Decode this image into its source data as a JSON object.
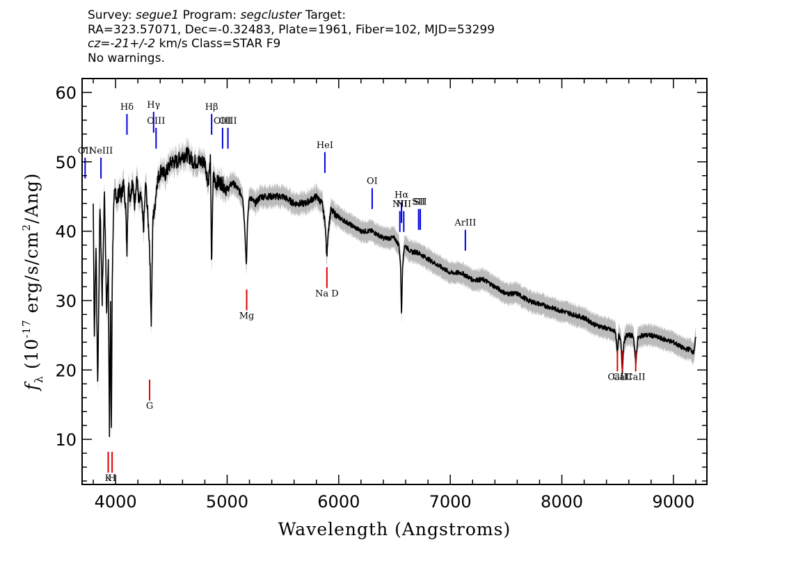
{
  "header": {
    "survey_label": "Survey:",
    "survey": "segue1",
    "program_label": "Program:",
    "program": "segcluster",
    "target_label": "Target:",
    "line2": "RA=323.57071, Dec=-0.32483, Plate=1961, Fiber=102, MJD=53299",
    "cz_label": "cz=",
    "cz_value": "-21+/-2",
    "cz_units": "km/s Class=STAR F9",
    "warnings": "No warnings."
  },
  "colors": {
    "flux": "#000000",
    "error_band": "#bbbbbb",
    "emission_line": "#0000dd",
    "absorption_line": "#dd0000"
  },
  "chart_data": {
    "type": "line",
    "xlabel": "Wavelength (Angstroms)",
    "ylabel_parts": [
      "f",
      "λ",
      " (10",
      "-17",
      " erg/s/cm",
      "2",
      "/Ang)"
    ],
    "xlim": [
      3700,
      9300
    ],
    "ylim": [
      3.5,
      62
    ],
    "xticks": [
      4000,
      5000,
      6000,
      7000,
      8000,
      9000
    ],
    "yticks": [
      10,
      20,
      30,
      40,
      50,
      60
    ],
    "spectrum": {
      "name": "flux",
      "x": [
        3800,
        3810,
        3825,
        3840,
        3860,
        3880,
        3900,
        3920,
        3935,
        3945,
        3955,
        3962,
        3970,
        3980,
        3990,
        4000,
        4015,
        4030,
        4050,
        4070,
        4090,
        4102,
        4115,
        4130,
        4150,
        4170,
        4190,
        4210,
        4230,
        4250,
        4270,
        4290,
        4305,
        4320,
        4335,
        4350,
        4370,
        4390,
        4410,
        4440,
        4470,
        4500,
        4550,
        4600,
        4650,
        4700,
        4750,
        4800,
        4830,
        4850,
        4861,
        4875,
        4900,
        4950,
        5000,
        5050,
        5100,
        5140,
        5160,
        5172,
        5185,
        5200,
        5250,
        5300,
        5400,
        5500,
        5600,
        5700,
        5800,
        5850,
        5880,
        5893,
        5905,
        5930,
        6000,
        6100,
        6200,
        6300,
        6400,
        6500,
        6540,
        6555,
        6563,
        6572,
        6590,
        6650,
        6700,
        6800,
        6900,
        7000,
        7100,
        7200,
        7300,
        7400,
        7500,
        7600,
        7700,
        7800,
        7900,
        8000,
        8100,
        8200,
        8300,
        8400,
        8480,
        8498,
        8510,
        8530,
        8542,
        8555,
        8580,
        8640,
        8662,
        8680,
        8720,
        8800,
        8900,
        9000,
        9100,
        9150,
        9180,
        9200
      ],
      "y": [
        44,
        25,
        38,
        18,
        44,
        30,
        46,
        28,
        36,
        10,
        30,
        9.5,
        33,
        42,
        45,
        46,
        44,
        46,
        45,
        47,
        44,
        37,
        47,
        45,
        47,
        44,
        48,
        44,
        45,
        40,
        47,
        42,
        38,
        27,
        42,
        43,
        47,
        48,
        49,
        48,
        49,
        50,
        50,
        51,
        51,
        50,
        50,
        50,
        47,
        50,
        35,
        48,
        47,
        47,
        46,
        47,
        46,
        45,
        40,
        35,
        42,
        45,
        44,
        45,
        45,
        45,
        44,
        44,
        45,
        44,
        41,
        36,
        40,
        43,
        42,
        41,
        40,
        40,
        39,
        39,
        38,
        35,
        27.5,
        35,
        38,
        37,
        37,
        36,
        35,
        34,
        34,
        33,
        33,
        32,
        31,
        31,
        30,
        29.5,
        29,
        28.5,
        28,
        27.5,
        26.5,
        26,
        25.5,
        22.5,
        25,
        24,
        19.5,
        24,
        25,
        25,
        21,
        24.5,
        25,
        25,
        24.5,
        24,
        23,
        23,
        22.5,
        24.5
      ]
    },
    "error_band_width": 1.5,
    "emission_lines": [
      {
        "name": "OII",
        "wavelength": 3727,
        "label_y": 51.2
      },
      {
        "name": "NeIII",
        "wavelength": 3869,
        "label_y": 51.2
      },
      {
        "name": "Hδ",
        "wavelength": 4102,
        "label_y": 57.5
      },
      {
        "name": "Hγ",
        "wavelength": 4341,
        "label_y": 57.8
      },
      {
        "name": "OIII",
        "wavelength": 4363,
        "label_y": 55.5
      },
      {
        "name": "Hβ",
        "wavelength": 4861,
        "label_y": 57.5
      },
      {
        "name": "OIII",
        "wavelength": 4959,
        "label_y": 55.5
      },
      {
        "name": "OIII",
        "wavelength": 5007,
        "label_y": 55.5
      },
      {
        "name": "HeI",
        "wavelength": 5876,
        "label_y": 52.0
      },
      {
        "name": "OI",
        "wavelength": 6300,
        "label_y": 46.8
      },
      {
        "name": "NII",
        "wavelength": 6548,
        "label_y": 43.5
      },
      {
        "name": "Hα",
        "wavelength": 6563,
        "label_y": 44.8
      },
      {
        "name": "NII",
        "wavelength": 6583,
        "label_y": 43.5
      },
      {
        "name": "SII",
        "wavelength": 6716,
        "label_y": 43.8
      },
      {
        "name": "SII",
        "wavelength": 6731,
        "label_y": 43.8
      },
      {
        "name": "ArIII",
        "wavelength": 7135,
        "label_y": 40.8
      }
    ],
    "absorption_lines": [
      {
        "name": "K",
        "wavelength": 3934,
        "label_y": 4.4
      },
      {
        "name": "H",
        "wavelength": 3969,
        "label_y": 4.4
      },
      {
        "name": "G",
        "wavelength": 4305,
        "label_y": 14.8
      },
      {
        "name": "Mg",
        "wavelength": 5175,
        "label_y": 27.8
      },
      {
        "name": "Na D",
        "wavelength": 5894,
        "label_y": 31.0
      },
      {
        "name": "CaII",
        "wavelength": 8498,
        "label_y": 19.0
      },
      {
        "name": "CaII",
        "wavelength": 8542,
        "label_y": 19.0
      },
      {
        "name": "CaII",
        "wavelength": 8662,
        "label_y": 19.0
      }
    ]
  }
}
